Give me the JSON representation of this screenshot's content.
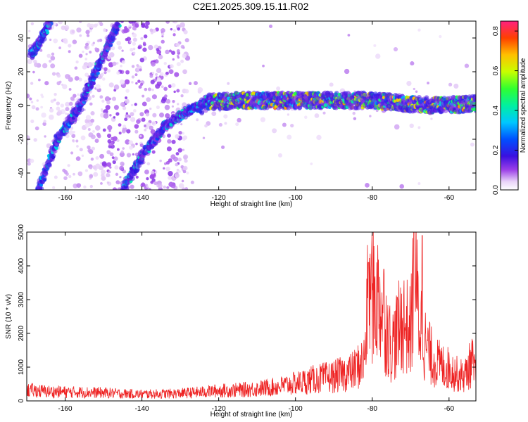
{
  "title": "C2E1.2025.309.15.11.R02",
  "colors": {
    "snr_line": "#ee2222",
    "axes": "#000000"
  },
  "chart_data": [
    {
      "type": "heatmap",
      "title": "C2E1.2025.309.15.11.R02",
      "xlabel": "Height of straight line (km)",
      "ylabel": "Frequency (Hz)",
      "xlim": [
        -170,
        -53
      ],
      "ylim": [
        -50,
        50
      ],
      "xticks": [
        -160,
        -140,
        -120,
        -100,
        -80,
        -60
      ],
      "yticks": [
        -40,
        -20,
        0,
        20,
        40
      ],
      "colorbar": {
        "label": "Normalized spectral amplitude",
        "range": [
          0,
          0.85
        ],
        "ticks": [
          0.0,
          0.2,
          0.4,
          0.6,
          0.8
        ]
      },
      "features": [
        {
          "name": "descending trace 1",
          "x": [
            -167,
            -162,
            -156,
            -151,
            -146
          ],
          "freq": [
            -50,
            -20,
            0,
            25,
            50
          ]
        },
        {
          "name": "descending trace 2",
          "x": [
            -145,
            -140,
            -134,
            -128,
            -122,
            -115,
            -100,
            -80,
            -65,
            -53
          ],
          "freq": [
            -50,
            -30,
            -12,
            -3,
            2,
            3,
            3,
            3,
            0,
            1
          ]
        },
        {
          "name": "left edge trace",
          "x": [
            -169,
            -166,
            -164
          ],
          "freq": [
            30,
            40,
            50
          ]
        }
      ]
    },
    {
      "type": "line",
      "xlabel": "Height of straight line (km)",
      "ylabel": "SNR (10 * v/v)",
      "xlim": [
        -170,
        -53
      ],
      "ylim": [
        0,
        5000
      ],
      "xticks": [
        -160,
        -140,
        -120,
        -100,
        -80,
        -60
      ],
      "yticks": [
        0,
        1000,
        2000,
        3000,
        4000,
        5000
      ],
      "series": [
        {
          "name": "SNR",
          "x": [
            -170,
            -165,
            -160,
            -155,
            -150,
            -145,
            -140,
            -135,
            -130,
            -125,
            -120,
            -115,
            -110,
            -105,
            -100,
            -95,
            -90,
            -85,
            -82,
            -81,
            -78,
            -75,
            -72,
            -70,
            -69,
            -68,
            -66,
            -64,
            -62,
            -60,
            -58,
            -56,
            -54,
            -53
          ],
          "values": [
            400,
            350,
            330,
            320,
            300,
            270,
            250,
            260,
            280,
            320,
            380,
            400,
            450,
            520,
            650,
            800,
            900,
            1100,
            1500,
            4100,
            3700,
            2000,
            3000,
            2500,
            5000,
            3200,
            2000,
            1500,
            1300,
            1200,
            1000,
            900,
            1500,
            800
          ]
        }
      ],
      "peaks": [
        {
          "x": -81,
          "y": 4100
        },
        {
          "x": -77,
          "y": 3900
        },
        {
          "x": -69,
          "y": 5000
        },
        {
          "x": -67,
          "y": 4900
        }
      ]
    }
  ]
}
